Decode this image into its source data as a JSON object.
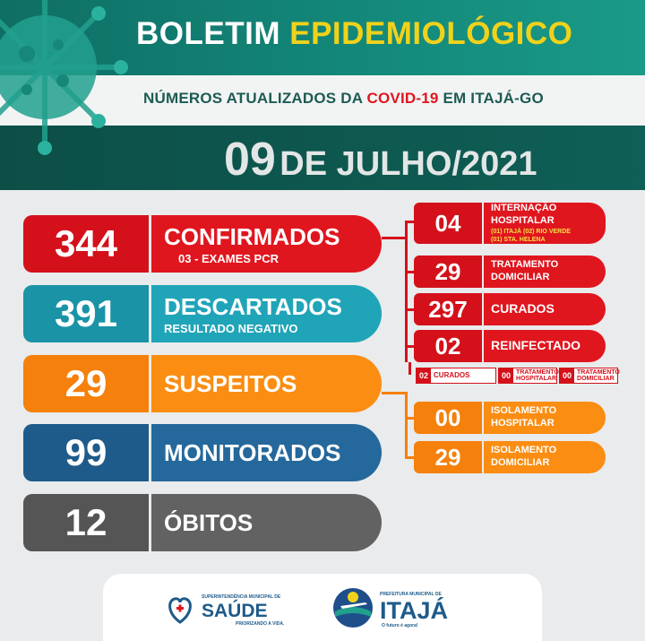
{
  "header": {
    "title_part1": "BOLETIM",
    "title_part2": "EPIDEMIOLÓGICO",
    "subtitle_part1": "NÚMEROS ATUALIZADOS DA",
    "subtitle_highlight": "COVID-19",
    "subtitle_part2": "EM ITAJÁ-GO",
    "date_day": "09",
    "date_rest": "DE JULHO/2021"
  },
  "main_stats": [
    {
      "value": "344",
      "label": "CONFIRMADOS",
      "sublabel": "03 - EXAMES PCR",
      "color": "#e0161f"
    },
    {
      "value": "391",
      "label": "DESCARTADOS",
      "sublabel": "RESULTADO NEGATIVO",
      "color": "#20a4b8"
    },
    {
      "value": "29",
      "label": "SUSPEITOS",
      "sublabel": "",
      "color": "#fa8d12"
    },
    {
      "value": "99",
      "label": "MONITORADOS",
      "sublabel": "",
      "color": "#25689b"
    },
    {
      "value": "12",
      "label": "ÓBITOS",
      "sublabel": "",
      "color": "#626262"
    }
  ],
  "confirmed_breakdown": [
    {
      "value": "04",
      "label_line1": "INTERNAÇÃO",
      "label_line2": "HOSPITALAR",
      "detail1": "(01) ITAJÁ  (02) RIO VERDE",
      "detail2": "(01) STA. HELENA"
    },
    {
      "value": "29",
      "label_line1": "TRATAMENTO",
      "label_line2": "DOMICILIAR"
    },
    {
      "value": "297",
      "label_line1": "CURADOS",
      "label_line2": ""
    },
    {
      "value": "02",
      "label_line1": "REINFECTADO",
      "label_line2": ""
    }
  ],
  "reinfected_detail": [
    {
      "value": "02",
      "label": "CURADOS"
    },
    {
      "value": "00",
      "label_line1": "TRATAMENTO",
      "label_line2": "HOSPITALAR"
    },
    {
      "value": "00",
      "label_line1": "TRATAMENTO",
      "label_line2": "DOMICILIAR"
    }
  ],
  "suspect_breakdown": [
    {
      "value": "00",
      "label_line1": "ISOLAMENTO",
      "label_line2": "HOSPITALAR"
    },
    {
      "value": "29",
      "label_line1": "ISOLAMENTO",
      "label_line2": "DOMICILIAR"
    }
  ],
  "footer": {
    "saude_top": "SUPERINTENDÊNCIA MUNICIPAL DE",
    "saude_name": "SAÚDE",
    "saude_tag": "PRIORIZANDO A VIDA.",
    "itaja_top": "PREFEITURA MUNICIPAL DE",
    "itaja_name": "ITAJÁ",
    "itaja_tag": "O futuro é agora!"
  },
  "colors": {
    "red": "#e0161f",
    "teal": "#20a4b8",
    "orange": "#fa8d12",
    "blue": "#25689b",
    "gray": "#626262",
    "header_green": "#13887a",
    "yellow": "#f1d21b"
  }
}
